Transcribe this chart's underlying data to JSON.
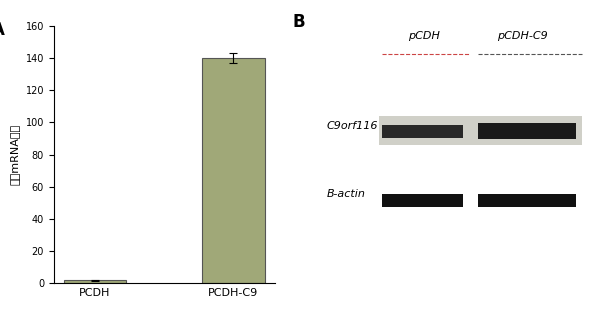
{
  "panel_A": {
    "categories": [
      "PCDH",
      "PCDH-C9"
    ],
    "values": [
      2.0,
      140.0
    ],
    "errors": [
      0.3,
      3.0
    ],
    "bar_color": "#a0a878",
    "bar_edge_color": "#555555",
    "ylim": [
      0,
      160
    ],
    "yticks": [
      0,
      20,
      40,
      60,
      80,
      100,
      120,
      140,
      160
    ],
    "ylabel": "相对mRNA含量",
    "label": "A"
  },
  "panel_B": {
    "label": "B",
    "col_labels": [
      "pCDH",
      "pCDH-C9"
    ],
    "row_labels": [
      "C9orf116",
      "B-actin"
    ],
    "bg_color": "#d0d0c8",
    "band1a_color": "#282828",
    "band1b_color": "#1a1a1a",
    "band2_color": "#111111",
    "underline1_color": "#cc4444",
    "underline2_color": "#555555"
  }
}
